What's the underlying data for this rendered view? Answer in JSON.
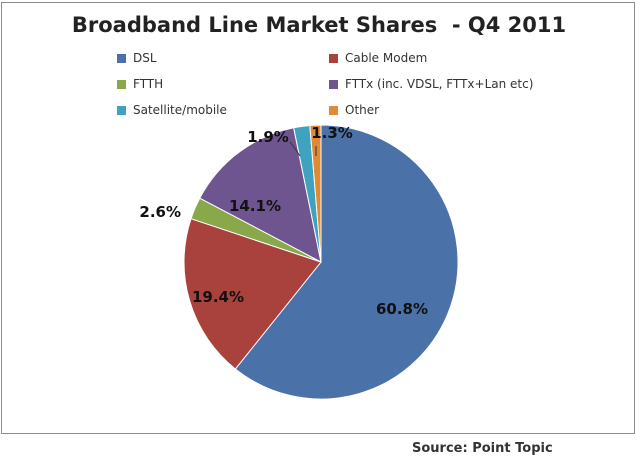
{
  "chart_data": {
    "type": "pie",
    "title": "Broadband Line Market Shares  - Q4 2011",
    "slices": [
      {
        "name": "DSL",
        "value": 60.8,
        "label": "60.8%",
        "color": "#4a72a8"
      },
      {
        "name": "Cable Modem",
        "value": 19.4,
        "label": "19.4%",
        "color": "#a9413d"
      },
      {
        "name": "FTTH",
        "value": 2.6,
        "label": "2.6%",
        "color": "#88a84a"
      },
      {
        "name": "FTTx (inc. VDSL, FTTx+Lan etc)",
        "value": 14.1,
        "label": "14.1%",
        "color": "#6f558f"
      },
      {
        "name": "Satellite/mobile",
        "value": 1.9,
        "label": "1.9%",
        "color": "#3fa3bf"
      },
      {
        "name": "Other",
        "value": 1.3,
        "label": "1.3%",
        "color": "#e08a35"
      }
    ],
    "legend_position": "top"
  },
  "source": "Source: Point Topic"
}
